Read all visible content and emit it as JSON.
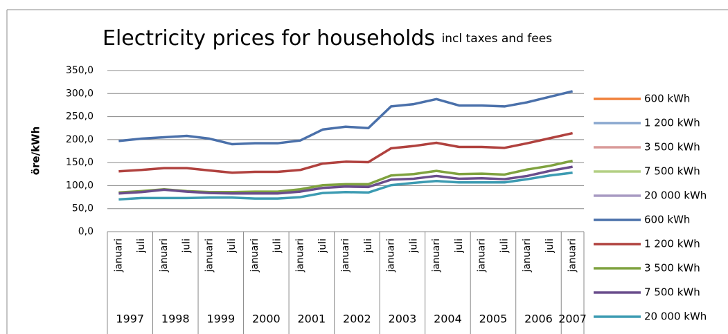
{
  "chart_data": {
    "type": "line",
    "title": "Electricity prices for households",
    "subtitle": "incl taxes and fees",
    "y_label": "öre/kWh",
    "categories": [
      "januari",
      "juli",
      "januari",
      "juli",
      "januari",
      "juli",
      "januari",
      "juli",
      "januari",
      "juli",
      "januari",
      "juli",
      "januari",
      "juli",
      "januari",
      "juli",
      "januari",
      "juli",
      "januari",
      "juli",
      "januari"
    ],
    "years": [
      "1997",
      "1998",
      "1999",
      "2000",
      "2001",
      "2002",
      "2003",
      "2004",
      "2005",
      "2006",
      "2007"
    ],
    "ylim": [
      0,
      350
    ],
    "yticks": [
      {
        "value": 0,
        "label": "0,0"
      },
      {
        "value": 50,
        "label": "50,0"
      },
      {
        "value": 100,
        "label": "100,0"
      },
      {
        "value": 150,
        "label": "150,0"
      },
      {
        "value": 200,
        "label": "200,0"
      },
      {
        "value": 250,
        "label": "250,0"
      },
      {
        "value": 300,
        "label": "300,0"
      },
      {
        "value": 350,
        "label": "350,0"
      }
    ],
    "grid": true,
    "legend": "right",
    "series": [
      {
        "name": "600 kWh",
        "color": "#f0803a",
        "values": [
          null,
          null,
          null,
          null,
          null,
          null,
          null,
          null,
          null,
          null,
          null,
          null,
          null,
          null,
          null,
          null,
          null,
          null,
          null,
          null,
          null
        ]
      },
      {
        "name": "1 200 kWh",
        "color": "#8aa8cf",
        "values": [
          null,
          null,
          null,
          null,
          null,
          null,
          null,
          null,
          null,
          null,
          null,
          null,
          null,
          null,
          null,
          null,
          null,
          null,
          null,
          null,
          null
        ]
      },
      {
        "name": "3 500 kWh",
        "color": "#d99a98",
        "values": [
          null,
          null,
          null,
          null,
          null,
          null,
          null,
          null,
          null,
          null,
          null,
          null,
          null,
          null,
          null,
          null,
          null,
          null,
          null,
          null,
          null
        ]
      },
      {
        "name": "7 500 kWh",
        "color": "#b3cf84",
        "values": [
          null,
          null,
          null,
          null,
          null,
          null,
          null,
          null,
          null,
          null,
          null,
          null,
          null,
          null,
          null,
          null,
          null,
          null,
          null,
          null,
          null
        ]
      },
      {
        "name": "20 000 kWh",
        "color": "#a89ac2",
        "values": [
          null,
          null,
          null,
          null,
          null,
          null,
          null,
          null,
          null,
          null,
          null,
          null,
          null,
          null,
          null,
          null,
          null,
          null,
          null,
          null,
          null
        ]
      },
      {
        "name": "600 kWh",
        "color": "#4a70aa",
        "values": [
          197,
          202,
          205,
          208,
          202,
          190,
          192,
          192,
          198,
          222,
          228,
          225,
          272,
          277,
          288,
          274,
          274,
          272,
          281,
          293,
          305
        ]
      },
      {
        "name": "1 200 kWh",
        "color": "#b0413e",
        "values": [
          131,
          134,
          138,
          138,
          133,
          128,
          130,
          130,
          134,
          148,
          152,
          151,
          181,
          186,
          193,
          184,
          184,
          182,
          192,
          203,
          214
        ]
      },
      {
        "name": "3 500 kWh",
        "color": "#7fa23f",
        "values": [
          85,
          88,
          92,
          88,
          86,
          86,
          87,
          87,
          92,
          101,
          103,
          103,
          122,
          125,
          132,
          125,
          126,
          124,
          135,
          143,
          154
        ]
      },
      {
        "name": "7 500 kWh",
        "color": "#6a4d8c",
        "values": [
          83,
          86,
          91,
          87,
          84,
          83,
          83,
          83,
          87,
          95,
          98,
          97,
          113,
          115,
          121,
          115,
          116,
          114,
          121,
          132,
          141
        ]
      },
      {
        "name": "20 000 kWh",
        "color": "#3c9bb2",
        "values": [
          70,
          73,
          73,
          73,
          74,
          74,
          72,
          72,
          75,
          84,
          86,
          85,
          101,
          106,
          110,
          107,
          107,
          107,
          114,
          122,
          128
        ]
      }
    ]
  }
}
